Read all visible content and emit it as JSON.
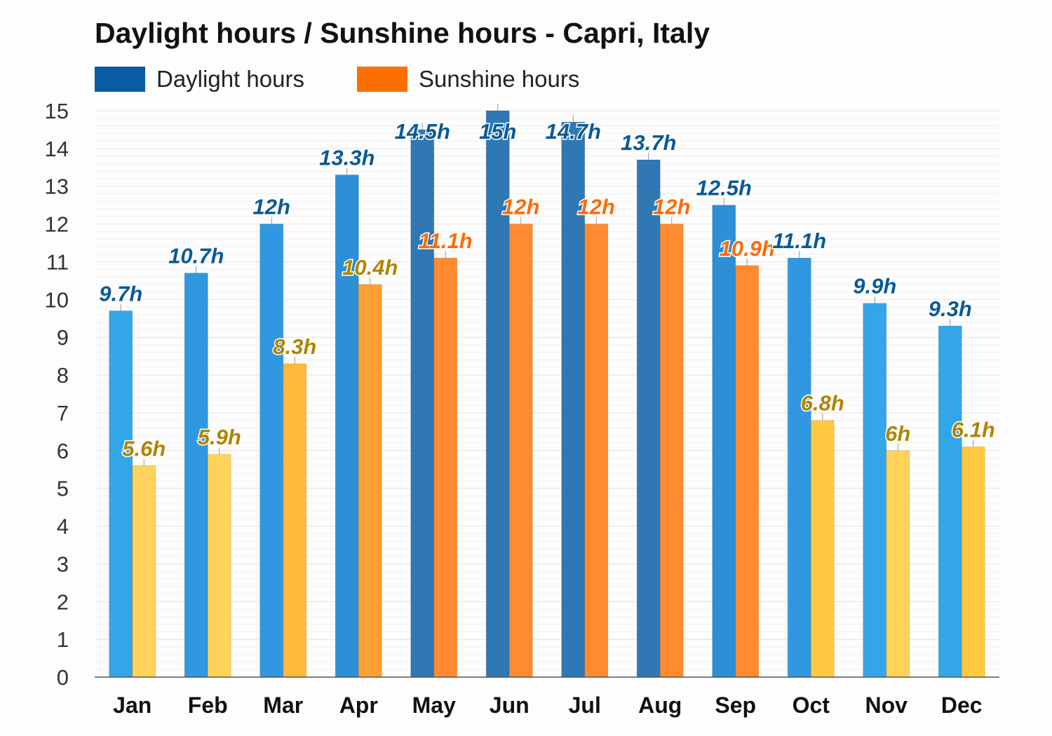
{
  "chart_data": {
    "type": "bar",
    "title": "Daylight hours / Sunshine hours - Capri, Italy",
    "xlabel": "",
    "ylabel": "",
    "ylim": [
      0,
      15
    ],
    "yticks": [
      0,
      1,
      2,
      3,
      4,
      5,
      6,
      7,
      8,
      9,
      10,
      11,
      12,
      13,
      14,
      15
    ],
    "grid": true,
    "legend_position": "top-left",
    "categories": [
      "Jan",
      "Feb",
      "Mar",
      "Apr",
      "May",
      "Jun",
      "Jul",
      "Aug",
      "Sep",
      "Oct",
      "Nov",
      "Dec"
    ],
    "series": [
      {
        "name": "Daylight hours",
        "color": "#0b5aa6",
        "values": [
          9.7,
          10.7,
          12,
          13.3,
          14.5,
          15,
          14.7,
          13.7,
          12.5,
          11.1,
          9.9,
          9.3
        ],
        "labels": [
          "9.7h",
          "10.7h",
          "12h",
          "13.3h",
          "14.5h",
          "15h",
          "14.7h",
          "13.7h",
          "12.5h",
          "11.1h",
          "9.9h",
          "9.3h"
        ]
      },
      {
        "name": "Sunshine hours",
        "color": "#ff6f00",
        "values": [
          5.6,
          5.9,
          8.3,
          10.4,
          11.1,
          12,
          12,
          12,
          10.9,
          6.8,
          6,
          6.1
        ],
        "labels": [
          "5.6h",
          "5.9h",
          "8.3h",
          "10.4h",
          "11.1h",
          "12h",
          "12h",
          "12h",
          "10.9h",
          "6.8h",
          "6h",
          "6.1h"
        ]
      }
    ]
  }
}
